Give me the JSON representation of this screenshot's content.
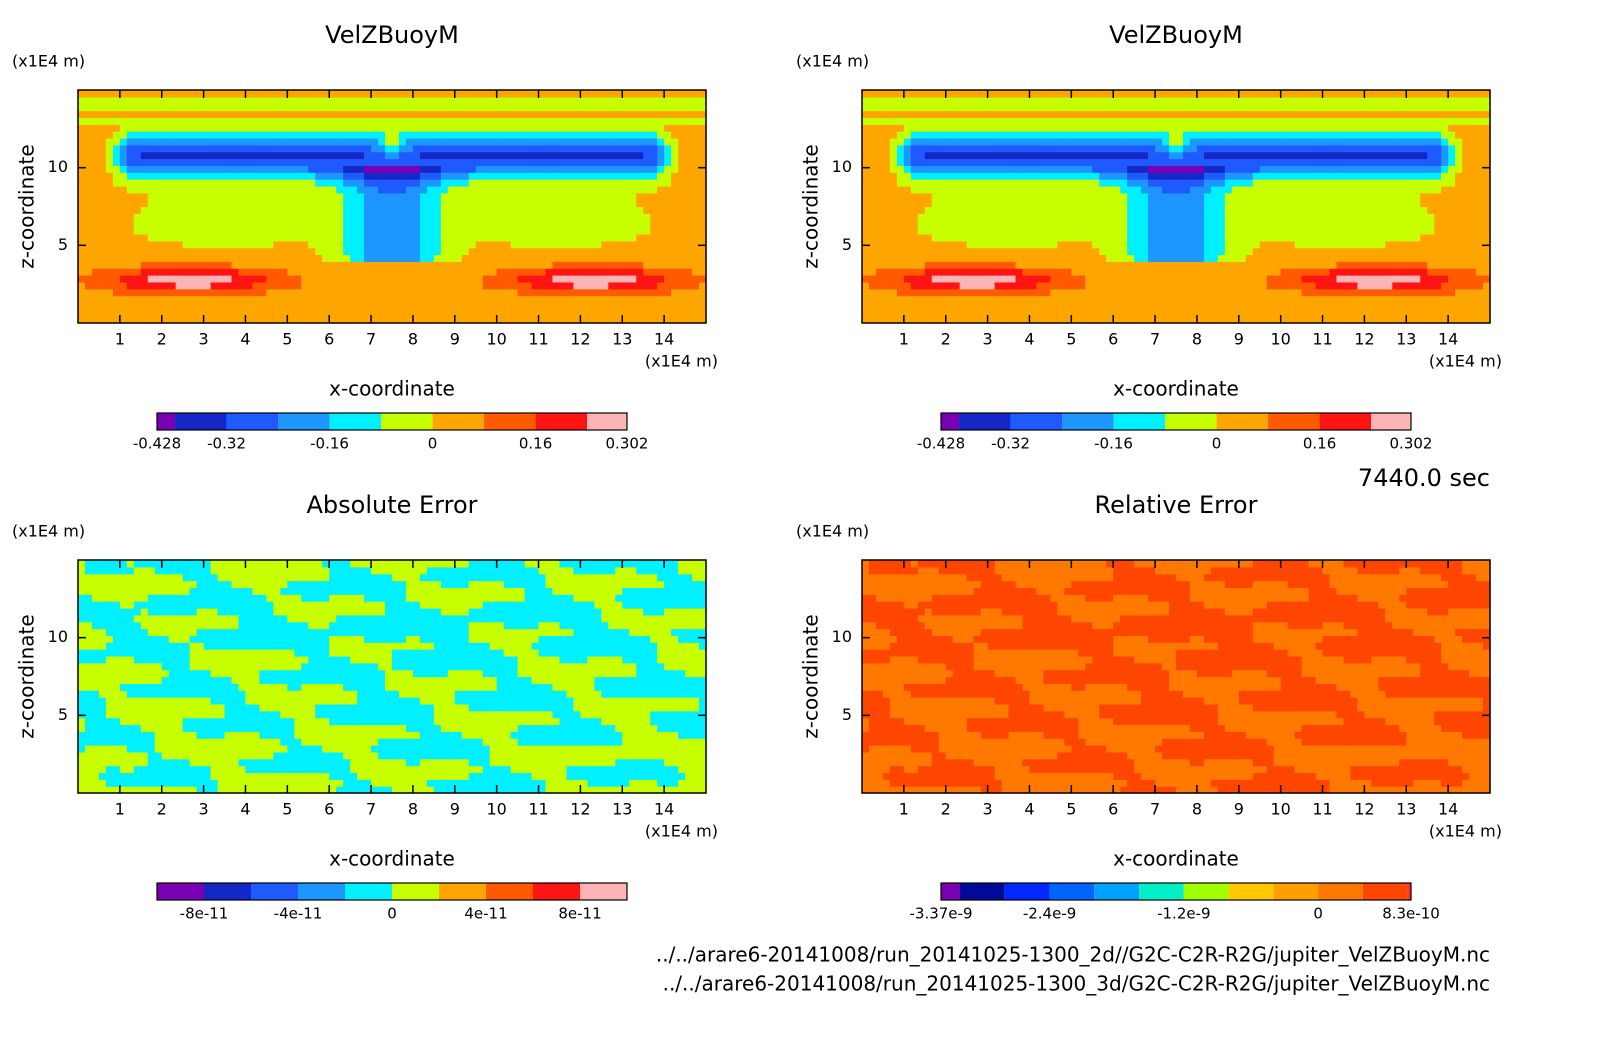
{
  "chart_data": [
    {
      "type": "contour",
      "title": "VelZBuoyM",
      "xlabel": "x-coordinate",
      "ylabel": "z-coordinate",
      "x_unit": "(x1E4 m)",
      "y_unit": "(x1E4 m)",
      "xlim": [
        0,
        15
      ],
      "ylim": [
        0,
        15
      ],
      "xticks": [
        1,
        2,
        3,
        4,
        5,
        6,
        7,
        8,
        9,
        10,
        11,
        12,
        13,
        14
      ],
      "yticks": [
        5,
        10
      ],
      "colorbar": {
        "levels": [
          -0.428,
          -0.4,
          -0.32,
          -0.24,
          -0.16,
          -0.08,
          0,
          0.08,
          0.16,
          0.24,
          0.302
        ],
        "colors": [
          "#7a00b4",
          "#1428c8",
          "#1e5aff",
          "#1e96ff",
          "#00f0ff",
          "#c8ff00",
          "#ffa500",
          "#ff5a00",
          "#ff1414",
          "#ffb4b4"
        ],
        "ticks": [
          -0.428,
          -0.32,
          -0.16,
          0,
          0.16,
          0.302
        ]
      }
    },
    {
      "type": "contour",
      "title": "VelZBuoyM",
      "xlabel": "x-coordinate",
      "ylabel": "z-coordinate",
      "x_unit": "(x1E4 m)",
      "y_unit": "(x1E4 m)",
      "xlim": [
        0,
        15
      ],
      "ylim": [
        0,
        15
      ],
      "xticks": [
        1,
        2,
        3,
        4,
        5,
        6,
        7,
        8,
        9,
        10,
        11,
        12,
        13,
        14
      ],
      "yticks": [
        5,
        10
      ],
      "colorbar": {
        "levels": [
          -0.428,
          -0.4,
          -0.32,
          -0.24,
          -0.16,
          -0.08,
          0,
          0.08,
          0.16,
          0.24,
          0.302
        ],
        "colors": [
          "#7a00b4",
          "#1428c8",
          "#1e5aff",
          "#1e96ff",
          "#00f0ff",
          "#c8ff00",
          "#ffa500",
          "#ff5a00",
          "#ff1414",
          "#ffb4b4"
        ],
        "ticks": [
          -0.428,
          -0.32,
          -0.16,
          0,
          0.16,
          0.302
        ]
      }
    },
    {
      "type": "contour",
      "title": "Absolute Error",
      "xlabel": "x-coordinate",
      "ylabel": "z-coordinate",
      "x_unit": "(x1E4 m)",
      "y_unit": "(x1E4 m)",
      "xlim": [
        0,
        15
      ],
      "ylim": [
        0,
        15
      ],
      "xticks": [
        1,
        2,
        3,
        4,
        5,
        6,
        7,
        8,
        9,
        10,
        11,
        12,
        13,
        14
      ],
      "yticks": [
        5,
        10
      ],
      "colorbar": {
        "levels": [
          -1e-10,
          -8e-11,
          -6e-11,
          -4e-11,
          -2e-11,
          0,
          2e-11,
          4e-11,
          6e-11,
          8e-11,
          1e-10
        ],
        "colors": [
          "#7a00b4",
          "#1428c8",
          "#1e5aff",
          "#1e96ff",
          "#00f0ff",
          "#c8ff00",
          "#ffa500",
          "#ff5a00",
          "#ff1414",
          "#ffb4b4"
        ],
        "ticks": [
          -8e-11,
          -4e-11,
          0,
          4e-11,
          8e-11
        ]
      }
    },
    {
      "type": "contour",
      "title": "Relative Error",
      "xlabel": "x-coordinate",
      "ylabel": "z-coordinate",
      "x_unit": "(x1E4 m)",
      "y_unit": "(x1E4 m)",
      "xlim": [
        0,
        15
      ],
      "ylim": [
        0,
        15
      ],
      "xticks": [
        1,
        2,
        3,
        4,
        5,
        6,
        7,
        8,
        9,
        10,
        11,
        12,
        13,
        14
      ],
      "yticks": [
        5,
        10
      ],
      "colorbar": {
        "levels": [
          -3.37e-09,
          -3.2e-09,
          -2.8e-09,
          -2.4e-09,
          -2e-09,
          -1.6e-09,
          -1.2e-09,
          -8e-10,
          -4e-10,
          0,
          4e-10,
          8e-10,
          8.3e-10
        ],
        "colors": [
          "#7a00b4",
          "#000a96",
          "#0028ff",
          "#0064ff",
          "#00a0ff",
          "#00f0c8",
          "#a0ff00",
          "#ffc800",
          "#ffa000",
          "#ff7800",
          "#ff4600",
          "#ff3030"
        ],
        "ticks": [
          -3.37e-09,
          -2.4e-09,
          -1.2e-09,
          0,
          8.3e-10
        ]
      }
    }
  ],
  "footer": {
    "time": "7440.0 sec",
    "files": [
      "../../arare6-20141008/run_20141025-1300_2d//G2C-C2R-R2G/jupiter_VelZBuoyM.nc",
      "../../arare6-20141008/run_20141025-1300_3d/G2C-C2R-R2G/jupiter_VelZBuoyM.nc"
    ]
  }
}
